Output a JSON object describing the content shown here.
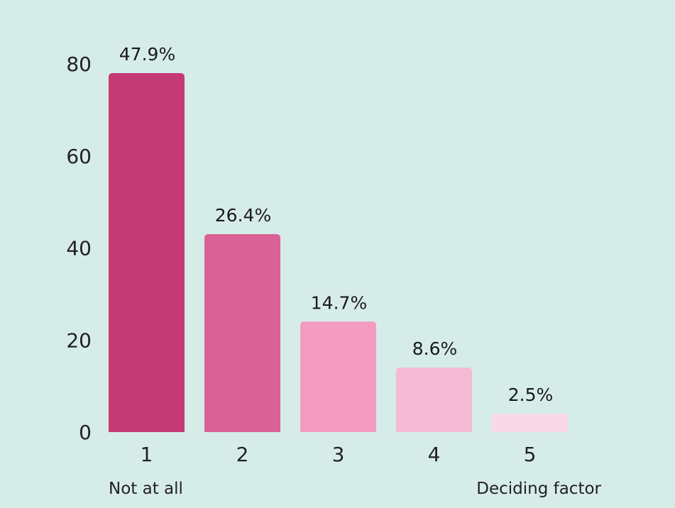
{
  "chart_data": {
    "type": "bar",
    "categories": [
      "1",
      "2",
      "3",
      "4",
      "5"
    ],
    "values": [
      78,
      43,
      24,
      14,
      4
    ],
    "data_labels": [
      "47.9%",
      "26.4%",
      "14.7%",
      "8.6%",
      "2.5%"
    ],
    "bar_colors": [
      "#c43a74",
      "#da6196",
      "#f39bc1",
      "#f6b9d3",
      "#f9d9e6"
    ],
    "background": "#d6ece8",
    "yticks": [
      "0",
      "20",
      "40",
      "60",
      "80"
    ],
    "ytick_values": [
      0,
      20,
      40,
      60,
      80
    ],
    "ylim": [
      0,
      80
    ],
    "grid": false,
    "scale_labels": {
      "low": "Not at all",
      "high": "Deciding factor"
    }
  }
}
